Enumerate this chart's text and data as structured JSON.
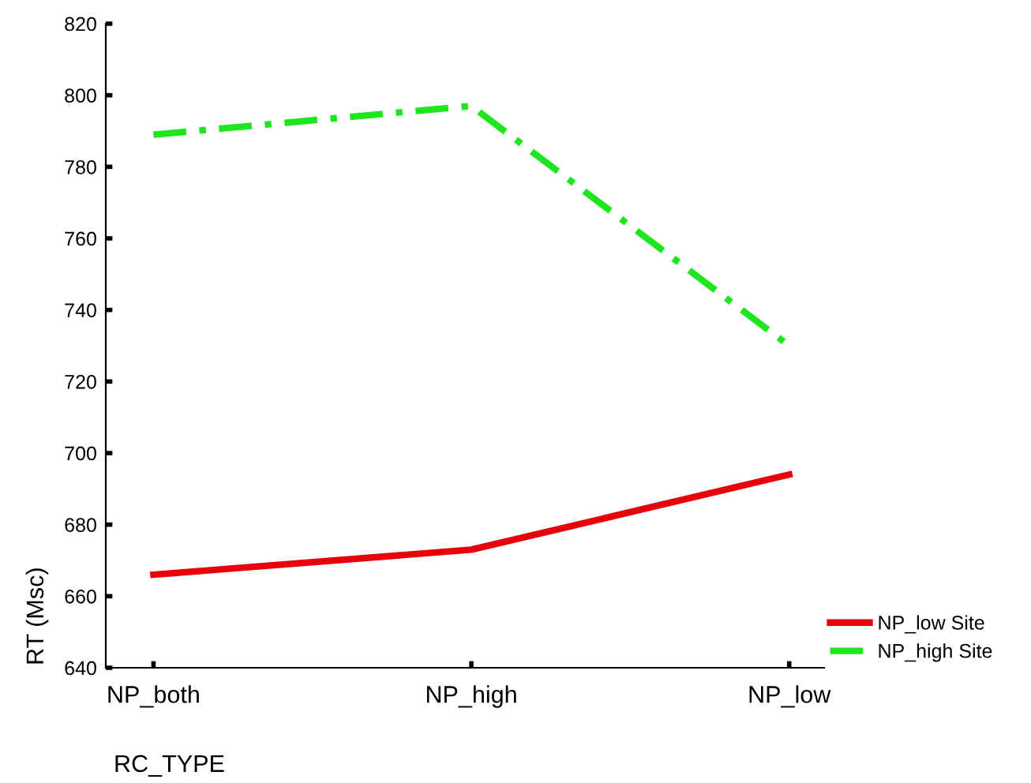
{
  "chart_data": {
    "type": "line",
    "xlabel": "RC_TYPE",
    "ylabel": "RT (Msc)",
    "categories": [
      "NP_both",
      "NP_high",
      "NP_low"
    ],
    "series": [
      {
        "name": "NP_low Site",
        "color": "#e8000b",
        "values": [
          666,
          673,
          694
        ],
        "line_style": "solid"
      },
      {
        "name": "NP_high Site",
        "color": "#1ee61e",
        "values": [
          789,
          797,
          730
        ],
        "line_style": "dashdot"
      }
    ],
    "ylim": [
      640,
      820
    ],
    "yticks": [
      640,
      660,
      680,
      700,
      720,
      740,
      760,
      780,
      800,
      820
    ],
    "grid": false,
    "legend": "bottom right",
    "marker": "none"
  }
}
